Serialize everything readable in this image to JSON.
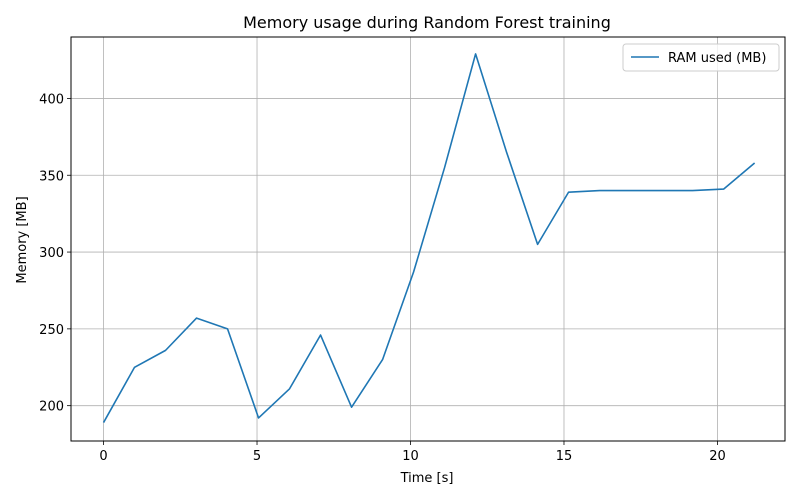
{
  "chart_data": {
    "type": "line",
    "title": "Memory usage during Random Forest training",
    "xlabel": "Time [s]",
    "ylabel": "Memory [MB]",
    "xlim": [
      -1.06,
      22.2
    ],
    "ylim": [
      177,
      440
    ],
    "xticks": [
      0,
      5,
      10,
      15,
      20
    ],
    "yticks": [
      200,
      250,
      300,
      350,
      400
    ],
    "grid": true,
    "legend_position": "upper right",
    "series": [
      {
        "name": "RAM used (MB)",
        "color": "#1f77b4",
        "x": [
          0,
          1.01,
          2.02,
          3.03,
          4.04,
          5.05,
          6.06,
          7.07,
          8.08,
          9.09,
          10.1,
          11.11,
          12.12,
          13.13,
          14.14,
          15.15,
          16.16,
          17.17,
          18.18,
          19.19,
          20.2,
          21.21
        ],
        "y": [
          189,
          225,
          236,
          257,
          250,
          192,
          211,
          246,
          199,
          230,
          287,
          355,
          429,
          365,
          305,
          339,
          340,
          340,
          340,
          340,
          341,
          358
        ]
      }
    ]
  }
}
